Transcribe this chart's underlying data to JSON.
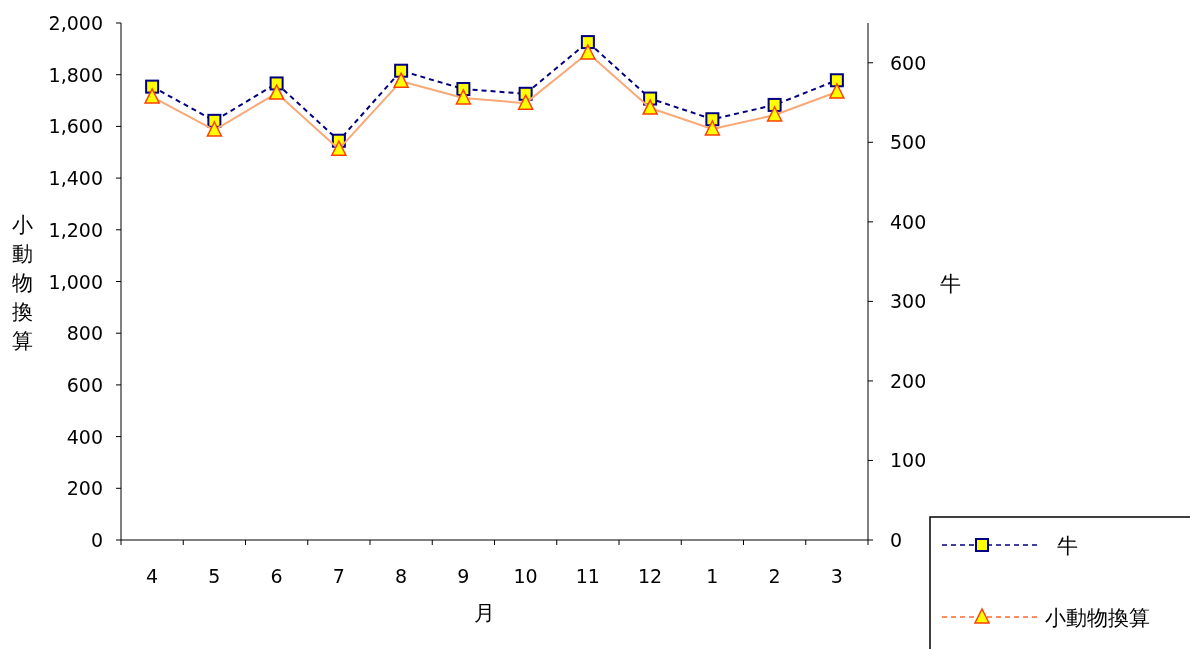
{
  "chart_data": {
    "type": "line",
    "xlabel": "月",
    "ylabel": "小動物換算",
    "y2label": "牛",
    "categories": [
      "4",
      "5",
      "6",
      "7",
      "8",
      "9",
      "10",
      "11",
      "12",
      "1",
      "2",
      "3"
    ],
    "series": [
      {
        "name": "牛",
        "color": "#000080",
        "axis": "y2",
        "marker": "square",
        "line_style": "dashed",
        "values": [
          570,
          527,
          574,
          502,
          590,
          567,
          561,
          626,
          555,
          529,
          547,
          578
        ]
      },
      {
        "name": "小動物換算",
        "color": "#f9a878",
        "axis": "y",
        "marker": "triangle",
        "line_style": "solid",
        "values": [
          1714,
          1586,
          1729,
          1512,
          1775,
          1710,
          1690,
          1884,
          1671,
          1590,
          1644,
          1733
        ]
      }
    ],
    "ylim": [
      0,
      2000
    ],
    "yticks": [
      0,
      200,
      400,
      600,
      800,
      {
        "value": 1000,
        "label": "1,000"
      },
      {
        "value": 1200,
        "label": "1,200"
      },
      {
        "value": 1400,
        "label": "1,400"
      },
      {
        "value": 1600,
        "label": "1,600"
      },
      {
        "value": 1800,
        "label": "1,800"
      },
      {
        "value": 2000,
        "label": "2,000"
      }
    ],
    "y2lim": [
      0,
      650
    ],
    "y2ticks": [
      0,
      100,
      200,
      300,
      400,
      500,
      600
    ],
    "grid": false,
    "legend": "bottom right"
  }
}
